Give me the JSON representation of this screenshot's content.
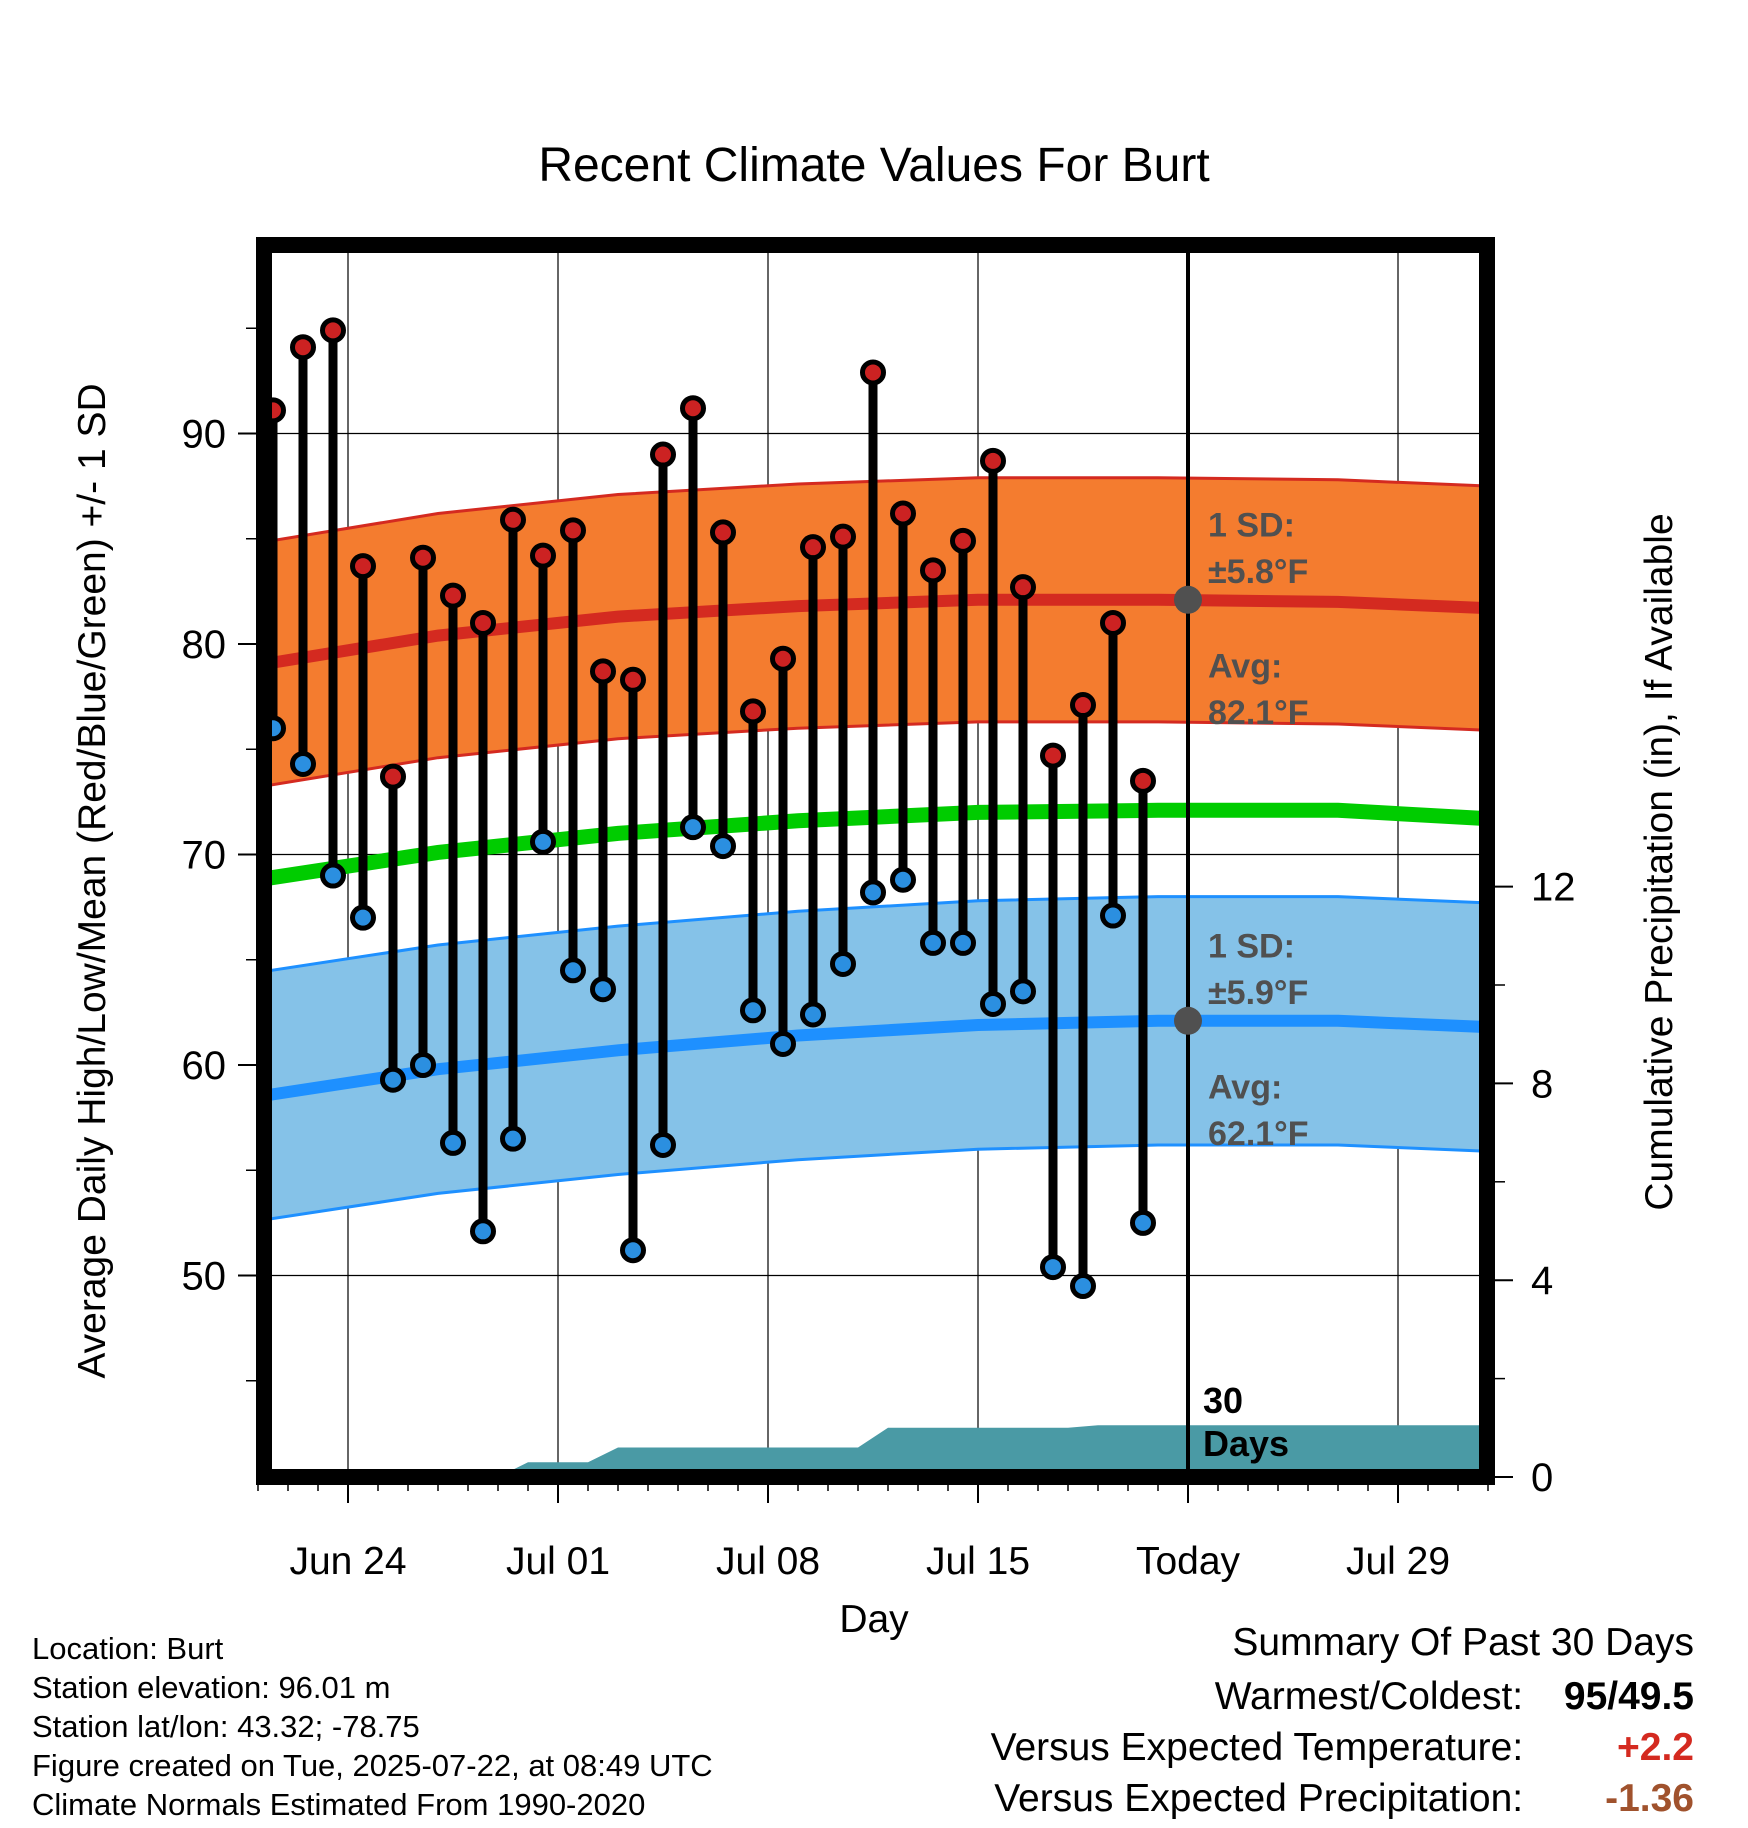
{
  "chart_data": {
    "type": "line",
    "title": "Recent Climate Values For Burt",
    "xlabel": "Day",
    "ylabel": "Average Daily High/Low/Mean (Red/Blue/Green) +/- 1 SD",
    "y2label": "Cumulative Precipitation (in), If Available",
    "x_tick_labels": [
      "Jun 24",
      "Jul 01",
      "Jul 08",
      "Jul 15",
      "Today",
      "Jul 29"
    ],
    "x_tick_days": [
      2,
      9,
      16,
      23,
      30,
      37
    ],
    "x_range_days": [
      -1,
      40
    ],
    "ylim": [
      41,
      99.5
    ],
    "y_ticks": [
      50,
      60,
      70,
      80,
      90
    ],
    "y2lim": [
      0,
      24.5
    ],
    "y2_ticks": [
      0,
      4,
      8,
      12
    ],
    "grid": true,
    "days": [
      -0.5,
      0.5,
      1.5,
      2.5,
      3.5,
      4.5,
      5.5,
      6.5,
      7.5,
      8.5,
      9.5,
      10.5,
      11.5,
      12.5,
      13.5,
      14.5,
      15.5,
      16.5,
      17.5,
      18.5,
      19.5,
      20.5,
      21.5,
      22.5,
      23.5,
      24.5,
      25.5,
      26.5,
      27.5,
      28.5
    ],
    "series": [
      {
        "name": "High",
        "color": "#cc2222",
        "values": [
          91.1,
          94.1,
          94.9,
          83.7,
          73.7,
          84.1,
          82.3,
          81.0,
          85.9,
          84.2,
          85.4,
          78.7,
          78.3,
          89.0,
          91.2,
          85.3,
          76.8,
          79.3,
          84.6,
          85.1,
          92.9,
          86.2,
          83.5,
          84.9,
          88.7,
          82.7,
          74.7,
          77.1,
          81.0,
          73.5
        ]
      },
      {
        "name": "Low",
        "color": "#2b8fe0",
        "values": [
          76.0,
          74.3,
          69.0,
          67.0,
          59.3,
          60.0,
          56.3,
          52.1,
          56.5,
          70.6,
          64.5,
          63.6,
          51.2,
          56.2,
          71.3,
          70.4,
          62.6,
          61.0,
          62.4,
          64.8,
          68.2,
          68.8,
          65.8,
          65.8,
          62.9,
          63.5,
          50.4,
          49.5,
          67.1,
          52.5
        ]
      }
    ],
    "normal_high": {
      "avg_values": [
        79.0,
        80.4,
        81.3,
        81.8,
        82.1,
        82.1,
        82.0,
        81.7
      ],
      "sd": 5.8,
      "avg_label": "Avg:",
      "avg_value": "82.1°F",
      "sd_label": "1 SD:",
      "sd_value": "±5.8°F"
    },
    "normal_low": {
      "avg_values": [
        58.5,
        59.8,
        60.7,
        61.4,
        61.9,
        62.1,
        62.1,
        61.8
      ],
      "sd": 5.9,
      "avg_label": "Avg:",
      "avg_value": "62.1°F",
      "sd_label": "1 SD:",
      "sd_value": "±5.9°F"
    },
    "normal_mean": {
      "values": [
        68.8,
        70.1,
        71.0,
        71.6,
        72.0,
        72.1,
        72.1,
        71.7
      ]
    },
    "normals_days": [
      -1,
      5,
      11,
      17,
      23,
      29,
      35,
      40
    ],
    "precip_cumulative": {
      "days": [
        7,
        8,
        9,
        10,
        11,
        12,
        13,
        14,
        19,
        20,
        21,
        22,
        23,
        24,
        25,
        26,
        27,
        28,
        29,
        30,
        40
      ],
      "values": [
        0,
        0.3,
        0.3,
        0.3,
        0.6,
        0.6,
        0.6,
        0.6,
        0.6,
        1.0,
        1.0,
        1.0,
        1.0,
        1.0,
        1.0,
        1.0,
        1.05,
        1.05,
        1.05,
        1.05,
        1.05
      ],
      "label": "30\nDays"
    },
    "colors": {
      "high_band": "#f47c2f",
      "high_avg": "#d42a20",
      "low_band": "#85c2e8",
      "low_avg": "#1e90ff",
      "mean": "#00cc00",
      "precip": "#4a9aa5",
      "today_marker": "#505050"
    }
  },
  "footer": {
    "location": "Location: Burt",
    "elevation": "Station elevation: 96.01 m",
    "latlon": "Station lat/lon: 43.32; -78.75",
    "created": "Figure created on Tue, 2025-07-22, at 08:49 UTC",
    "normals": "Climate Normals Estimated From 1990-2020"
  },
  "summary": {
    "title": "Summary Of Past 30 Days",
    "warmest_label": "Warmest/Coldest:",
    "warmest_value": "95/49.5",
    "temp_label": "Versus Expected Temperature:",
    "temp_value": "+2.2",
    "temp_color": "#d42a20",
    "precip_label": "Versus Expected Precipitation:",
    "precip_value": "-1.36",
    "precip_color": "#a0522d"
  }
}
